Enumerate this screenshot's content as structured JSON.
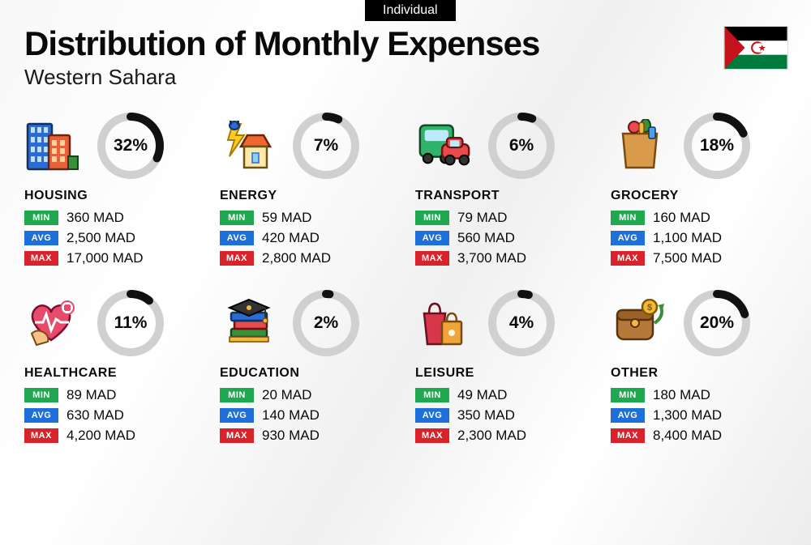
{
  "badge": "Individual",
  "title": "Distribution of Monthly Expenses",
  "subtitle": "Western Sahara",
  "currency": "MAD",
  "labels": {
    "min": "MIN",
    "avg": "AVG",
    "max": "MAX"
  },
  "colors": {
    "min": "#1fa84f",
    "avg": "#1e6fd9",
    "max": "#d8232a",
    "donut_track": "#d0d0d0",
    "donut_fill": "#111111",
    "text": "#0a0a0a"
  },
  "donut": {
    "size": 82,
    "stroke": 10
  },
  "flag": {
    "stripes": [
      "#000000",
      "#ffffff",
      "#007a3d"
    ],
    "triangle": "#c4111b",
    "emblem_stroke": "#c4111b"
  },
  "categories": [
    {
      "key": "housing",
      "name": "HOUSING",
      "percent": 32,
      "min": "360 MAD",
      "avg": "2,500 MAD",
      "max": "17,000 MAD"
    },
    {
      "key": "energy",
      "name": "ENERGY",
      "percent": 7,
      "min": "59 MAD",
      "avg": "420 MAD",
      "max": "2,800 MAD"
    },
    {
      "key": "transport",
      "name": "TRANSPORT",
      "percent": 6,
      "min": "79 MAD",
      "avg": "560 MAD",
      "max": "3,700 MAD"
    },
    {
      "key": "grocery",
      "name": "GROCERY",
      "percent": 18,
      "min": "160 MAD",
      "avg": "1,100 MAD",
      "max": "7,500 MAD"
    },
    {
      "key": "healthcare",
      "name": "HEALTHCARE",
      "percent": 11,
      "min": "89 MAD",
      "avg": "630 MAD",
      "max": "4,200 MAD"
    },
    {
      "key": "education",
      "name": "EDUCATION",
      "percent": 2,
      "min": "20 MAD",
      "avg": "140 MAD",
      "max": "930 MAD"
    },
    {
      "key": "leisure",
      "name": "LEISURE",
      "percent": 4,
      "min": "49 MAD",
      "avg": "350 MAD",
      "max": "2,300 MAD"
    },
    {
      "key": "other",
      "name": "OTHER",
      "percent": 20,
      "min": "180 MAD",
      "avg": "1,300 MAD",
      "max": "8,400 MAD"
    }
  ]
}
